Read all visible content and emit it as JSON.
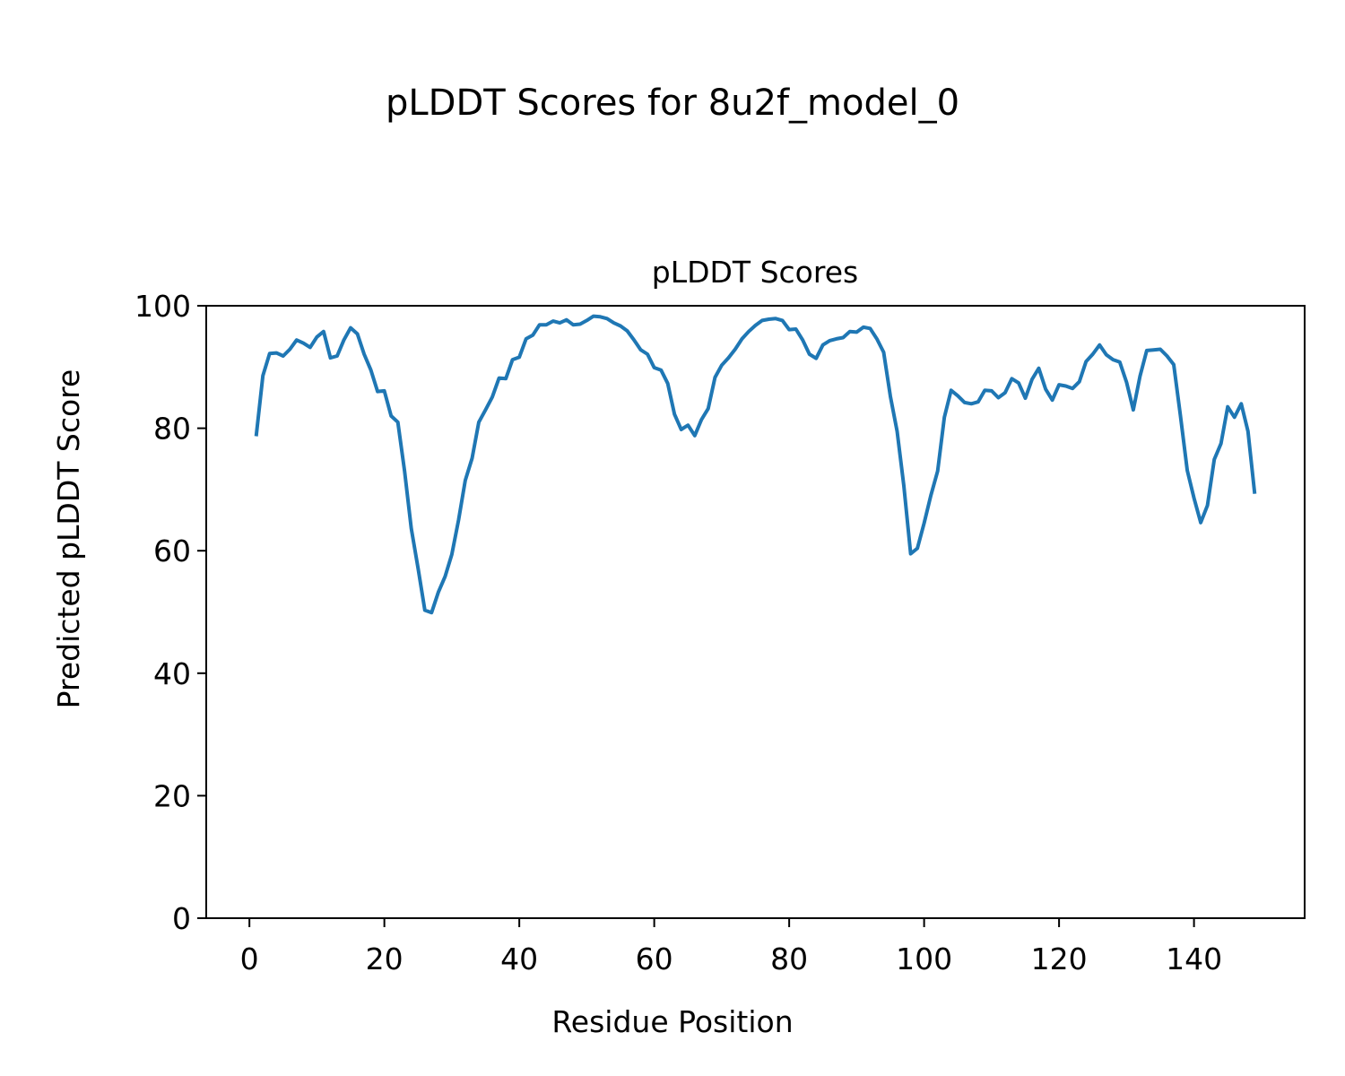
{
  "figure": {
    "suptitle": "pLDDT Scores for 8u2f_model_0"
  },
  "chart_data": {
    "type": "line",
    "title": "pLDDT Scores",
    "xlabel": "Residue Position",
    "ylabel": "Predicted pLDDT Score",
    "xlim": [
      -6.4,
      156.4
    ],
    "ylim": [
      0,
      100
    ],
    "xticks": [
      0,
      20,
      40,
      60,
      80,
      100,
      120,
      140
    ],
    "yticks": [
      0,
      20,
      40,
      60,
      80,
      100
    ],
    "grid": false,
    "line_color": "#1f77b4",
    "series": [
      {
        "x": [
          1,
          2,
          3,
          4,
          5,
          6,
          7,
          8,
          9,
          10,
          11,
          12,
          13,
          14,
          15,
          16,
          17,
          18,
          19,
          20,
          21,
          22,
          23,
          24,
          25,
          26,
          27,
          28,
          29,
          30,
          31,
          32,
          33,
          34,
          35,
          36,
          37,
          38,
          39,
          40,
          41,
          42,
          43,
          44,
          45,
          46,
          47,
          48,
          49,
          50,
          51,
          52,
          53,
          54,
          55,
          56,
          57,
          58,
          59,
          60,
          61,
          62,
          63,
          64,
          65,
          66,
          67,
          68,
          69,
          70,
          71,
          72,
          73,
          74,
          75,
          76,
          77,
          78,
          79,
          80,
          81,
          82,
          83,
          84,
          85,
          86,
          87,
          88,
          89,
          90,
          91,
          92,
          93,
          94,
          95,
          96,
          97,
          98,
          99,
          100,
          101,
          102,
          103,
          104,
          105,
          106,
          107,
          108,
          109,
          110,
          111,
          112,
          113,
          114,
          115,
          116,
          117,
          118,
          119,
          120,
          121,
          122,
          123,
          124,
          125,
          126,
          127,
          128,
          129,
          130,
          131,
          132,
          133,
          134,
          135,
          136,
          137,
          138,
          139,
          140,
          141,
          142,
          143,
          144,
          145,
          146,
          147,
          148,
          149
        ],
        "values": [
          78.7,
          88.6,
          92.2,
          92.3,
          91.8,
          92.9,
          94.4,
          93.9,
          93.2,
          94.9,
          95.8,
          91.5,
          91.8,
          94.4,
          96.4,
          95.4,
          92.1,
          89.5,
          86.0,
          86.1,
          82.0,
          81.0,
          73.0,
          63.6,
          57.1,
          50.3,
          49.9,
          53.2,
          55.8,
          59.4,
          65.0,
          71.5,
          75.1,
          81.0,
          83.0,
          85.1,
          88.2,
          88.1,
          91.2,
          91.6,
          94.6,
          95.2,
          96.9,
          96.9,
          97.5,
          97.2,
          97.7,
          96.9,
          97.0,
          97.6,
          98.3,
          98.2,
          97.9,
          97.2,
          96.7,
          95.9,
          94.4,
          92.8,
          92.1,
          89.9,
          89.5,
          87.3,
          82.3,
          79.8,
          80.5,
          78.8,
          81.4,
          83.2,
          88.3,
          90.3,
          91.5,
          92.9,
          94.6,
          95.8,
          96.8,
          97.6,
          97.8,
          97.9,
          97.6,
          96.1,
          96.2,
          94.4,
          92.1,
          91.4,
          93.6,
          94.3,
          94.6,
          94.8,
          95.8,
          95.7,
          96.5,
          96.3,
          94.6,
          92.4,
          85.2,
          79.5,
          70.6,
          59.5,
          60.4,
          64.5,
          69.0,
          73.0,
          81.8,
          86.2,
          85.3,
          84.2,
          84.0,
          84.3,
          86.2,
          86.1,
          85.0,
          85.8,
          88.1,
          87.4,
          84.9,
          88.0,
          89.8,
          86.4,
          84.6,
          87.1,
          86.9,
          86.5,
          87.6,
          90.9,
          92.1,
          93.6,
          92.0,
          91.2,
          90.8,
          87.5,
          83.0,
          88.5,
          92.7,
          92.8,
          92.9,
          91.8,
          90.4,
          82.0,
          73.1,
          68.6,
          64.6,
          67.4,
          74.9,
          77.5,
          83.5,
          81.8,
          84.0,
          79.5,
          69.3
        ]
      }
    ]
  }
}
